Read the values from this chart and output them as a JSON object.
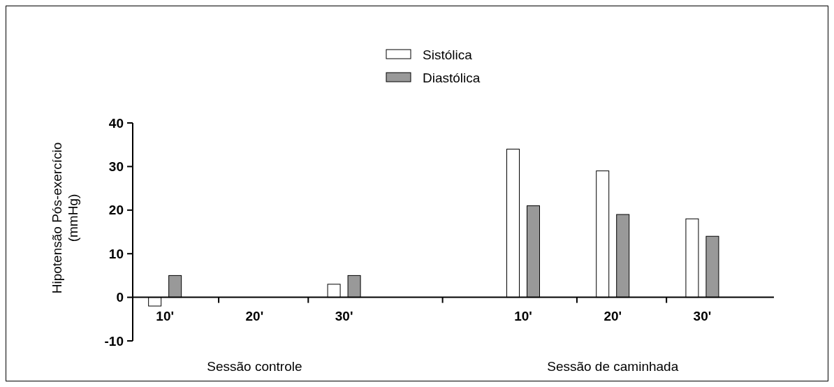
{
  "chart_data": {
    "type": "bar",
    "categories": [
      "10'",
      "20'",
      "30'",
      "10'",
      "20'",
      "30'"
    ],
    "series": [
      {
        "name": "Sistólica",
        "color": "#ffffff",
        "values": [
          -2,
          0,
          3,
          34,
          29,
          18
        ]
      },
      {
        "name": "Diastólica",
        "color": "#999999",
        "values": [
          5,
          0,
          5,
          21,
          19,
          14
        ]
      }
    ],
    "ylabel": "Hipotensão Pós-exercício\n(mmHg)",
    "ylim": [
      -10,
      40
    ],
    "yticks": [
      -10,
      0,
      10,
      20,
      30,
      40
    ],
    "annotations": [
      "Sessão controle",
      "Sessão de caminhada"
    ],
    "legend": "top",
    "grid": false
  }
}
